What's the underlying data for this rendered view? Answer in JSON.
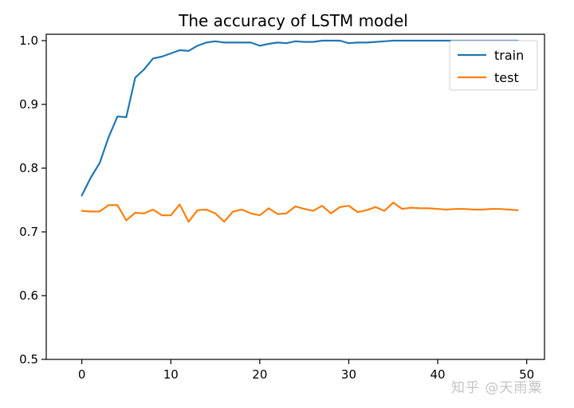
{
  "chart_data": {
    "type": "line",
    "title": "The accuracy of LSTM model",
    "xlabel": "",
    "ylabel": "",
    "xlim": [
      -4,
      52
    ],
    "ylim": [
      0.5,
      1.01
    ],
    "xticks": [
      0,
      10,
      20,
      30,
      40,
      50
    ],
    "yticks": [
      0.5,
      0.6,
      0.7,
      0.8,
      0.9,
      1.0
    ],
    "xtick_labels": [
      "0",
      "10",
      "20",
      "30",
      "40",
      "50"
    ],
    "ytick_labels": [
      "0.5",
      "0.6",
      "0.7",
      "0.8",
      "0.9",
      "1.0"
    ],
    "grid": false,
    "legend_position": "top-right",
    "x": [
      0,
      1,
      2,
      3,
      4,
      5,
      6,
      7,
      8,
      9,
      10,
      11,
      12,
      13,
      14,
      15,
      16,
      17,
      18,
      19,
      20,
      21,
      22,
      23,
      24,
      25,
      26,
      27,
      28,
      29,
      30,
      31,
      32,
      33,
      34,
      35,
      36,
      37,
      38,
      39,
      40,
      41,
      42,
      43,
      44,
      45,
      46,
      47,
      48,
      49
    ],
    "series": [
      {
        "name": "train",
        "color": "#1f77b4",
        "values": [
          0.757,
          0.785,
          0.808,
          0.848,
          0.881,
          0.88,
          0.942,
          0.955,
          0.972,
          0.975,
          0.98,
          0.985,
          0.984,
          0.992,
          0.997,
          0.999,
          0.997,
          0.997,
          0.997,
          0.997,
          0.992,
          0.995,
          0.997,
          0.996,
          0.999,
          0.998,
          0.998,
          1.0,
          1.0,
          1.0,
          0.996,
          0.997,
          0.997,
          0.998,
          0.999,
          1.0,
          1.0,
          1.0,
          1.0,
          1.0,
          1.0,
          1.0,
          1.0,
          1.0,
          1.0,
          1.0,
          1.0,
          1.0,
          1.0,
          1.0
        ]
      },
      {
        "name": "test",
        "color": "#ff7f0e",
        "values": [
          0.733,
          0.732,
          0.732,
          0.742,
          0.742,
          0.718,
          0.73,
          0.729,
          0.735,
          0.726,
          0.726,
          0.743,
          0.716,
          0.734,
          0.735,
          0.729,
          0.716,
          0.732,
          0.735,
          0.729,
          0.726,
          0.737,
          0.728,
          0.729,
          0.74,
          0.736,
          0.733,
          0.741,
          0.729,
          0.739,
          0.741,
          0.731,
          0.734,
          0.739,
          0.733,
          0.746,
          0.736,
          0.738,
          0.737,
          0.737,
          0.736,
          0.735,
          0.736,
          0.736,
          0.735,
          0.735,
          0.736,
          0.736,
          0.735,
          0.734
        ]
      }
    ]
  },
  "watermark": "知乎 @天雨粟"
}
